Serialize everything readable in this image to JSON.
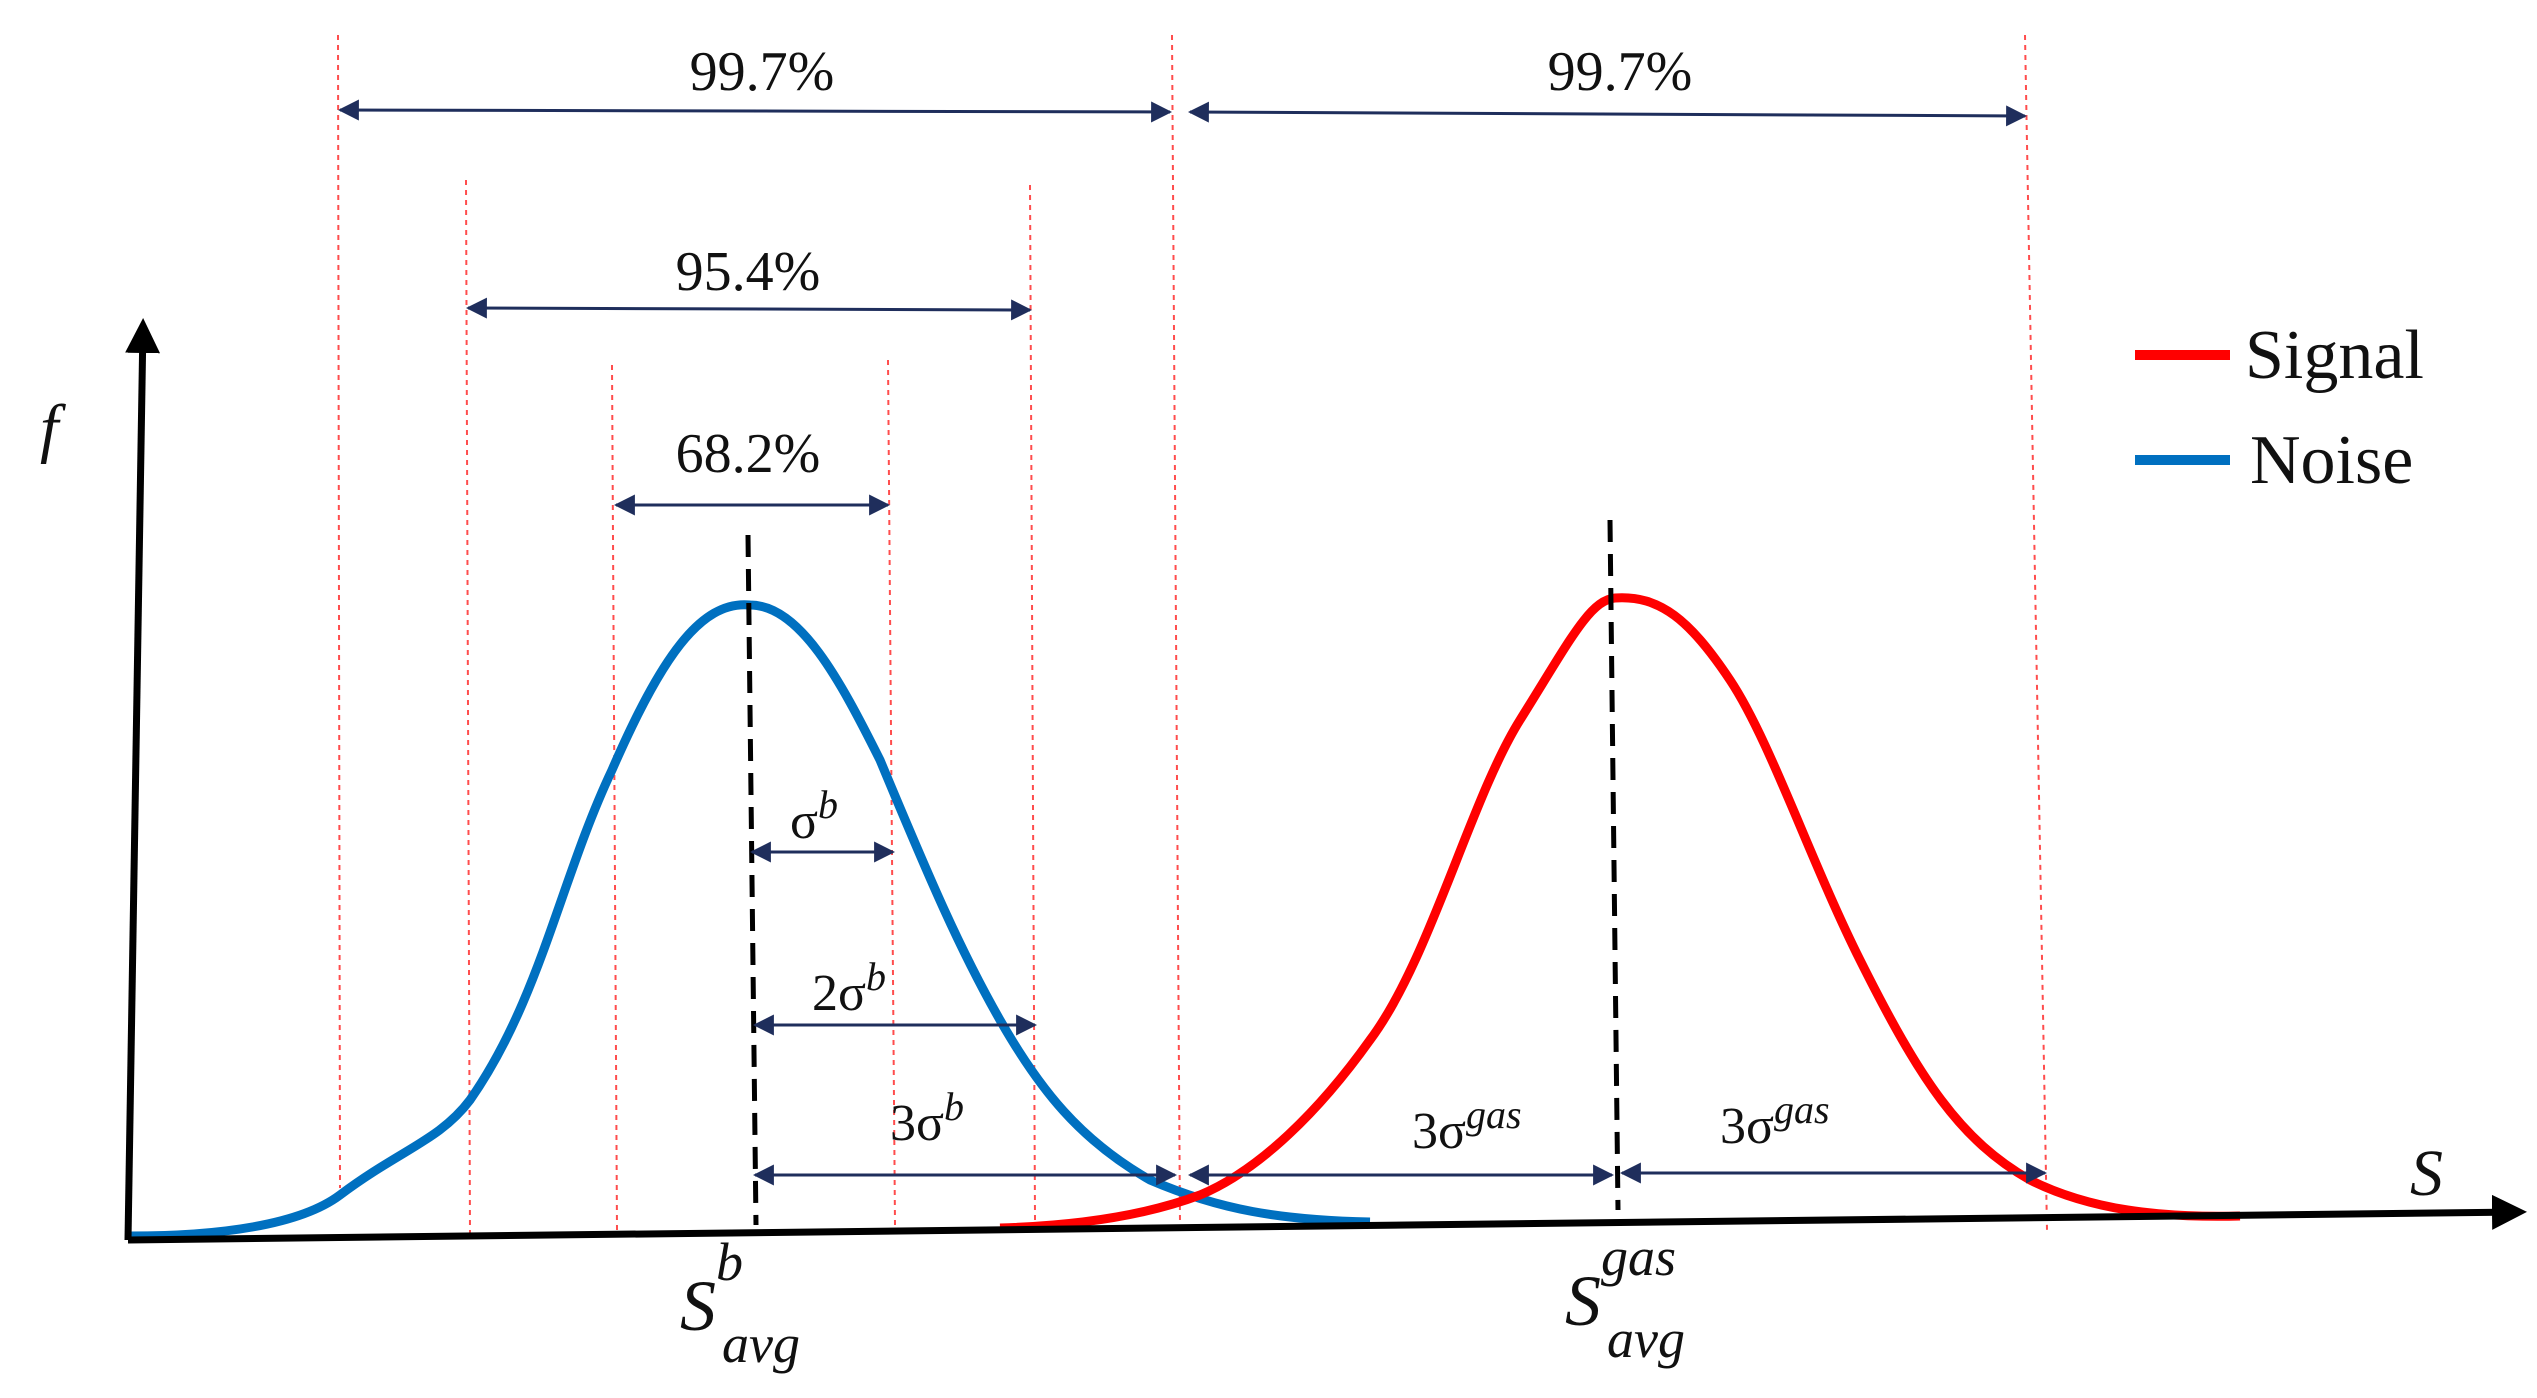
{
  "colors": {
    "signal": "#ff0000",
    "noise": "#0070c0",
    "guide": "#ff4d4d",
    "arrow": "#1f2e5c",
    "axis": "#000000",
    "mean_line": "#000000"
  },
  "axes": {
    "y_label": "f",
    "x_label": "S"
  },
  "legend": {
    "signal_label": "Signal",
    "noise_label": "Noise"
  },
  "noise_mean": {
    "base": "S",
    "superscript": "b",
    "subscript": "avg"
  },
  "signal_mean": {
    "base": "S",
    "superscript": "gas",
    "subscript": "avg"
  },
  "intervals": {
    "noise_997": "99.7%",
    "signal_997": "99.7%",
    "noise_954": "95.4%",
    "noise_682": "68.2%"
  },
  "sigma_labels": {
    "one_b": {
      "coef": "",
      "symbol": "σ",
      "sup": "b"
    },
    "two_b": {
      "coef": "2",
      "symbol": "σ",
      "sup": "b"
    },
    "three_b": {
      "coef": "3",
      "symbol": "σ",
      "sup": "b"
    },
    "three_gas_left": {
      "coef": "3",
      "symbol": "σ",
      "sup": "gas"
    },
    "three_gas_right": {
      "coef": "3",
      "symbol": "σ",
      "sup": "gas"
    }
  }
}
